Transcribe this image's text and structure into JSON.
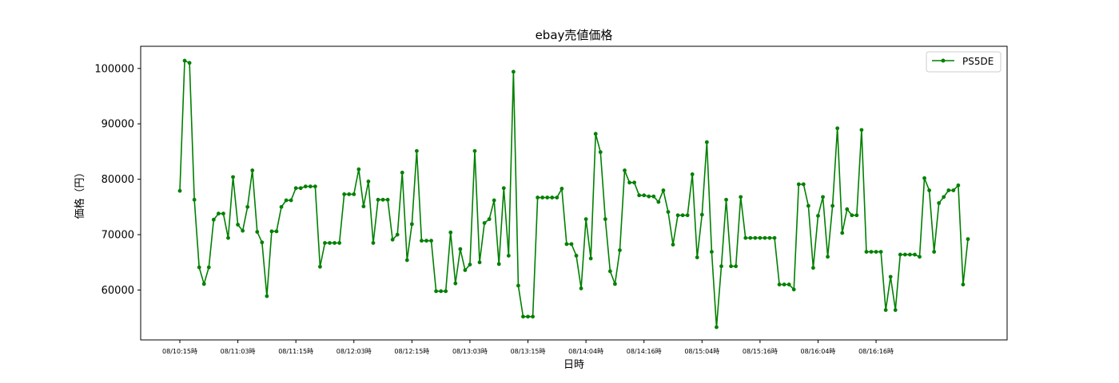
{
  "chart_data": {
    "type": "line",
    "title": "ebay売値価格",
    "xlabel": "日時",
    "ylabel": "価格（円）",
    "ylim": [
      51000,
      104000
    ],
    "yticks": [
      60000,
      70000,
      80000,
      90000,
      100000
    ],
    "x_tick_labels": [
      "08/10:15時",
      "08/11:03時",
      "08/11:15時",
      "08/12:03時",
      "08/12:15時",
      "08/13:03時",
      "08/13:15時",
      "08/14:04時",
      "08/14:16時",
      "08/15:04時",
      "08/15:16時",
      "08/16:04時",
      "08/16:16時"
    ],
    "x_tick_step": 12,
    "grid": false,
    "legend": "top-right",
    "series": [
      {
        "name": "PS5DE",
        "color": "#008000",
        "values": [
          77900,
          101400,
          101000,
          76300,
          64100,
          61100,
          64100,
          72700,
          73800,
          73800,
          69400,
          80400,
          71800,
          70700,
          75000,
          81600,
          70500,
          68600,
          58900,
          70600,
          70600,
          75000,
          76200,
          76200,
          78400,
          78400,
          78700,
          78700,
          78700,
          64200,
          68500,
          68500,
          68500,
          68500,
          77300,
          77300,
          77300,
          81800,
          75100,
          79600,
          68500,
          76300,
          76300,
          76300,
          69100,
          70000,
          81200,
          65400,
          71900,
          85100,
          68900,
          68900,
          68900,
          59800,
          59800,
          59800,
          70400,
          61200,
          67400,
          63600,
          64600,
          85100,
          65000,
          72100,
          72800,
          76200,
          64700,
          78400,
          66200,
          99400,
          60800,
          55200,
          55200,
          55200,
          76700,
          76700,
          76700,
          76700,
          76700,
          78300,
          68300,
          68300,
          66200,
          60300,
          72800,
          65700,
          88200,
          84900,
          72800,
          63400,
          61100,
          67200,
          81600,
          79400,
          79400,
          77100,
          77100,
          76900,
          76900,
          75900,
          78000,
          74100,
          68200,
          73500,
          73500,
          73500,
          80900,
          65900,
          73600,
          86700,
          66900,
          53300,
          64300,
          76300,
          64300,
          64300,
          76800,
          69400,
          69400,
          69400,
          69400,
          69400,
          69400,
          69400,
          61000,
          61000,
          61000,
          60100,
          79100,
          79100,
          75200,
          64000,
          73400,
          76800,
          66000,
          75200,
          89200,
          70300,
          74600,
          73500,
          73500,
          88900,
          66900,
          66900,
          66900,
          66900,
          56400,
          62400,
          56400,
          66400,
          66400,
          66400,
          66400,
          66000,
          80200,
          78000,
          66900,
          75700,
          76800,
          78000,
          78000,
          78900,
          61000,
          69200
        ]
      }
    ]
  }
}
